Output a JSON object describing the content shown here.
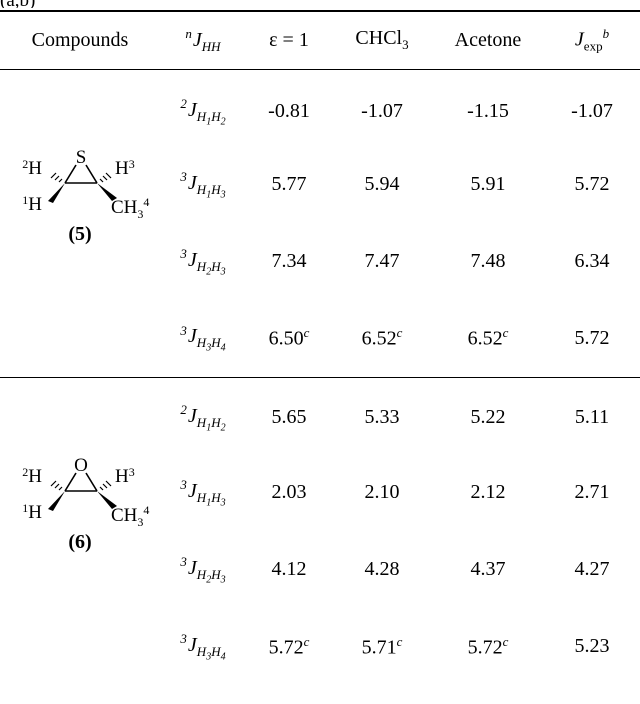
{
  "caption_fragment": "(a,b)",
  "headers": {
    "compounds": "Compounds",
    "j_prefix": "n",
    "j_main": "J",
    "j_sub": "HH",
    "eps": "ε = 1",
    "chcl3_a": "CHCl",
    "chcl3_sub": "3",
    "acetone": "Acetone",
    "jexp": "J",
    "jexp_sub": "exp",
    "jexp_sup": "b"
  },
  "compounds": [
    {
      "label_open": "(",
      "label_num": "5",
      "label_close": ")",
      "heteroatom": "S",
      "atoms": {
        "h2": "H",
        "h2n": "2",
        "h1": "H",
        "h1n": "1",
        "h3": "H",
        "h3n": "3",
        "ch3": "CH",
        "ch3sub": "3",
        "ch3n": "4"
      },
      "rows": [
        {
          "pre": "2",
          "a": "H",
          "an": "1",
          "b": "H",
          "bn": "2",
          "v1": "-0.81",
          "v2": "-1.07",
          "v3": "-1.15",
          "f": "",
          "vexp": "-1.07"
        },
        {
          "pre": "3",
          "a": "H",
          "an": "1",
          "b": "H",
          "bn": "3",
          "v1": "5.77",
          "v2": "5.94",
          "v3": "5.91",
          "f": "",
          "vexp": "5.72"
        },
        {
          "pre": "3",
          "a": "H",
          "an": "2",
          "b": "H",
          "bn": "3",
          "v1": "7.34",
          "v2": "7.47",
          "v3": "7.48",
          "f": "",
          "vexp": "6.34"
        },
        {
          "pre": "3",
          "a": "H",
          "an": "3",
          "b": "H",
          "bn": "4",
          "v1": "6.50",
          "v2": "6.52",
          "v3": "6.52",
          "f": "c",
          "vexp": "5.72"
        }
      ]
    },
    {
      "label_open": "(",
      "label_num": "6",
      "label_close": ")",
      "heteroatom": "O",
      "atoms": {
        "h2": "H",
        "h2n": "2",
        "h1": "H",
        "h1n": "1",
        "h3": "H",
        "h3n": "3",
        "ch3": "CH",
        "ch3sub": "3",
        "ch3n": "4"
      },
      "rows": [
        {
          "pre": "2",
          "a": "H",
          "an": "1",
          "b": "H",
          "bn": "2",
          "v1": "5.65",
          "v2": "5.33",
          "v3": "5.22",
          "f": "",
          "vexp": "5.11"
        },
        {
          "pre": "3",
          "a": "H",
          "an": "1",
          "b": "H",
          "bn": "3",
          "v1": "2.03",
          "v2": "2.10",
          "v3": "2.12",
          "f": "",
          "vexp": "2.71"
        },
        {
          "pre": "3",
          "a": "H",
          "an": "2",
          "b": "H",
          "bn": "3",
          "v1": "4.12",
          "v2": "4.28",
          "v3": "4.37",
          "f": "",
          "vexp": "4.27"
        },
        {
          "pre": "3",
          "a": "H",
          "an": "3",
          "b": "H",
          "bn": "4",
          "v1": "5.72",
          "v2": "5.71",
          "v3": "5.72",
          "f": "c",
          "vexp": "5.23"
        }
      ]
    }
  ]
}
